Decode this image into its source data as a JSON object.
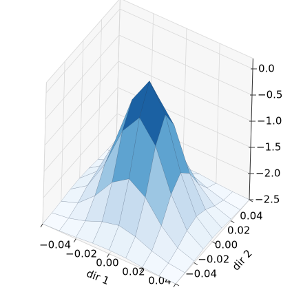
{
  "chart_data": {
    "type": "surface",
    "colormap": "Blues",
    "x": [
      -0.04,
      -0.03,
      -0.02,
      -0.01,
      0,
      0.01,
      0.02,
      0.03,
      0.04
    ],
    "y": [
      -0.04,
      -0.03,
      -0.02,
      -0.01,
      0,
      0.01,
      0.02,
      0.03,
      0.04
    ],
    "z": [
      [
        -2.5,
        -2.49,
        -2.47,
        -2.44,
        -2.43,
        -2.44,
        -2.47,
        -2.49,
        -2.5
      ],
      [
        -2.49,
        -2.45,
        -2.36,
        -2.23,
        -2.16,
        -2.23,
        -2.36,
        -2.45,
        -2.49
      ],
      [
        -2.47,
        -2.36,
        -2.08,
        -1.68,
        -1.47,
        -1.68,
        -2.08,
        -2.36,
        -2.47
      ],
      [
        -2.44,
        -2.23,
        -1.68,
        -0.9,
        -0.5,
        -0.9,
        -1.68,
        -2.23,
        -2.44
      ],
      [
        -2.43,
        -2.16,
        -1.47,
        -0.5,
        0,
        -0.5,
        -1.47,
        -2.16,
        -2.43
      ],
      [
        -2.44,
        -2.23,
        -1.68,
        -0.9,
        -0.5,
        -0.9,
        -1.68,
        -2.23,
        -2.44
      ],
      [
        -2.47,
        -2.36,
        -2.08,
        -1.68,
        -1.47,
        -1.68,
        -2.08,
        -2.36,
        -2.47
      ],
      [
        -2.49,
        -2.45,
        -2.36,
        -2.23,
        -2.16,
        -2.23,
        -2.36,
        -2.45,
        -2.49
      ],
      [
        -2.5,
        -2.49,
        -2.47,
        -2.44,
        -2.43,
        -2.44,
        -2.47,
        -2.49,
        -2.5
      ]
    ],
    "xlim": [
      -0.04,
      0.04
    ],
    "ylim": [
      -0.04,
      0.04
    ],
    "zlim": [
      -2.5,
      0
    ],
    "xticks": [
      {
        "value": -0.04,
        "label": "−0.04"
      },
      {
        "value": -0.02,
        "label": "−0.02"
      },
      {
        "value": 0,
        "label": "0.00"
      },
      {
        "value": 0.02,
        "label": "0.02"
      },
      {
        "value": 0.04,
        "label": "0.04"
      }
    ],
    "yticks": [
      {
        "value": -0.04,
        "label": "−0.04"
      },
      {
        "value": -0.02,
        "label": "−0.02"
      },
      {
        "value": 0,
        "label": "0.00"
      },
      {
        "value": 0.02,
        "label": "0.02"
      },
      {
        "value": 0.04,
        "label": "0.04"
      }
    ],
    "zticks": [
      {
        "value": -2.5,
        "label": "−2.5"
      },
      {
        "value": -2.0,
        "label": "−2.0"
      },
      {
        "value": -1.5,
        "label": "−1.5"
      },
      {
        "value": -1.0,
        "label": "−1.0"
      },
      {
        "value": -0.5,
        "label": "−0.5"
      },
      {
        "value": 0,
        "label": "0.0"
      }
    ],
    "xlabel": "dir 1",
    "ylabel": "dir 2",
    "grid": true
  }
}
